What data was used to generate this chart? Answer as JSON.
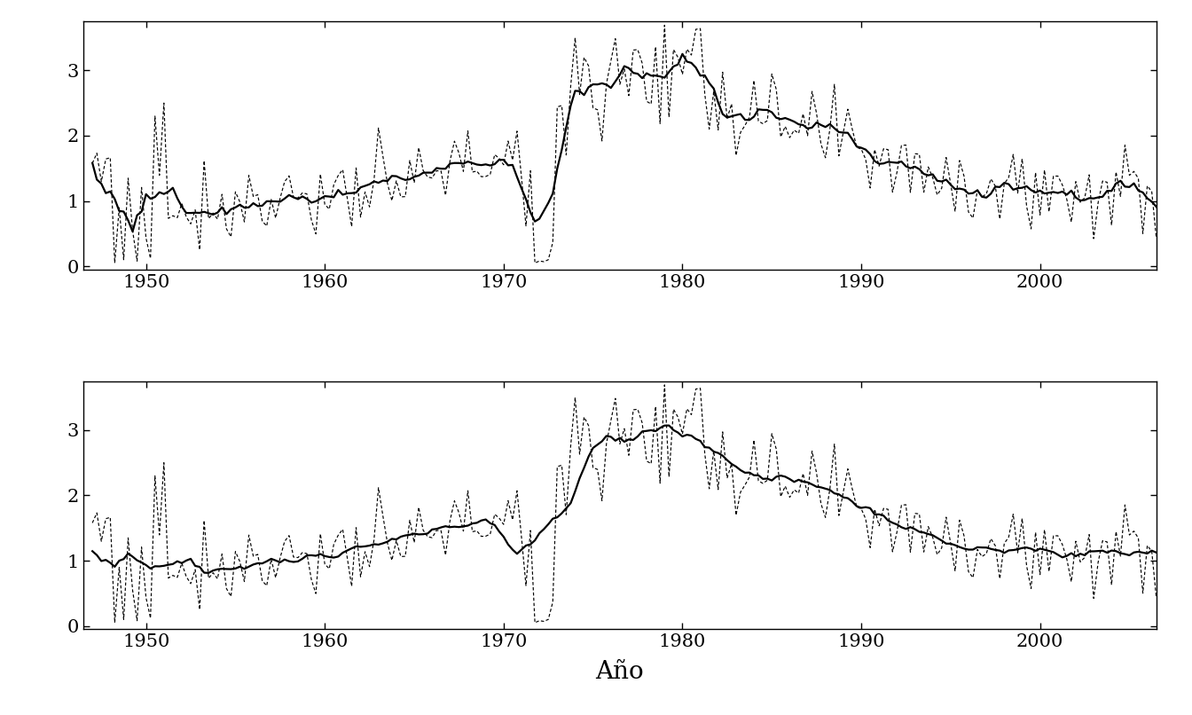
{
  "title": "",
  "xlabel": "Año",
  "ylabel": "",
  "ylim": [
    -0.05,
    3.75
  ],
  "xlim": [
    1946.5,
    2006.5
  ],
  "yticks": [
    0,
    1,
    2,
    3
  ],
  "xticks": [
    1950,
    1960,
    1970,
    1980,
    1990,
    2000
  ],
  "k1": 4,
  "k2": 8,
  "bg_color": "#ffffff",
  "line_color": "#000000"
}
